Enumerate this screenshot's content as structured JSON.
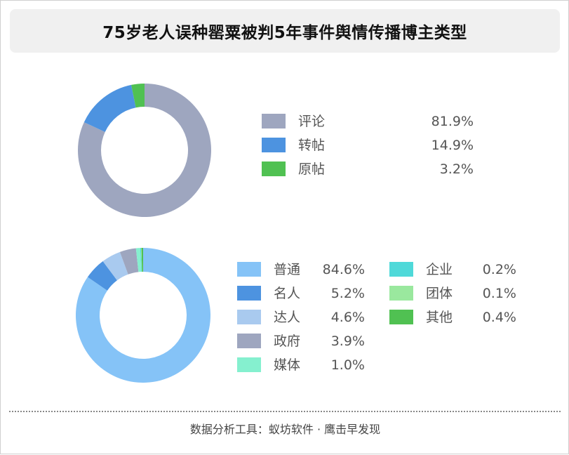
{
  "title": "75岁老人误种罂粟被判5年事件舆情传播博主类型",
  "footer": "数据分析工具：蚁坊软件 · 鹰击早发现",
  "chart_data": [
    {
      "type": "pie",
      "donut": true,
      "categories": [
        "评论",
        "转帖",
        "原帖"
      ],
      "values": [
        81.9,
        14.9,
        3.2
      ],
      "value_labels": [
        "81.9%",
        "14.9%",
        "3.2%"
      ],
      "colors": [
        "#9ea6bf",
        "#4d93e0",
        "#50c152"
      ],
      "legend": "right"
    },
    {
      "type": "pie",
      "donut": true,
      "categories": [
        "普通",
        "名人",
        "达人",
        "政府",
        "媒体",
        "企业",
        "团体",
        "其他"
      ],
      "values": [
        84.6,
        5.2,
        4.6,
        3.9,
        1.0,
        0.2,
        0.1,
        0.4
      ],
      "value_labels": [
        "84.6%",
        "5.2%",
        "4.6%",
        "3.9%",
        "1.0%",
        "0.2%",
        "0.1%",
        "0.4%"
      ],
      "colors": [
        "#85c3f7",
        "#4d93e0",
        "#a9caef",
        "#9ea6bf",
        "#85f0cf",
        "#4fd9d9",
        "#9ae89e",
        "#50c152"
      ],
      "legend": "right"
    }
  ]
}
